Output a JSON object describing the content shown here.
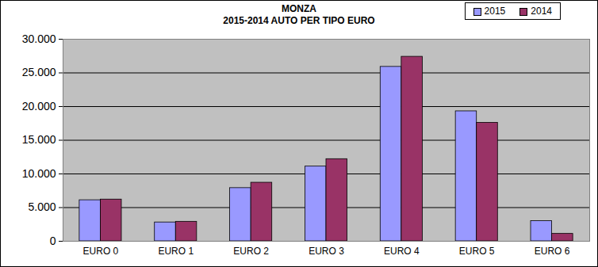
{
  "chart_data": {
    "type": "bar",
    "title": "MONZA",
    "subtitle": "2015-2014  AUTO PER TIPO EURO",
    "categories": [
      "EURO 0",
      "EURO 1",
      "EURO 2",
      "EURO 3",
      "EURO 4",
      "EURO 5",
      "EURO 6"
    ],
    "series": [
      {
        "name": "2015",
        "color": "#9999ff",
        "values": [
          6100,
          2800,
          7900,
          11100,
          25900,
          19300,
          3000
        ]
      },
      {
        "name": "2014",
        "color": "#993366",
        "values": [
          6200,
          2900,
          8700,
          12200,
          27400,
          17600,
          1100
        ]
      }
    ],
    "ylim": [
      0,
      30000
    ],
    "yticks": [
      0,
      {
        "value": 5000,
        "label": "5.000"
      },
      {
        "value": 10000,
        "label": "10.000"
      },
      {
        "value": 15000,
        "label": "15.000"
      },
      {
        "value": 20000,
        "label": "20.000"
      },
      {
        "value": 25000,
        "label": "25.000"
      },
      {
        "value": 30000,
        "label": "30.000"
      }
    ],
    "grid": true,
    "legend": "top-right"
  }
}
